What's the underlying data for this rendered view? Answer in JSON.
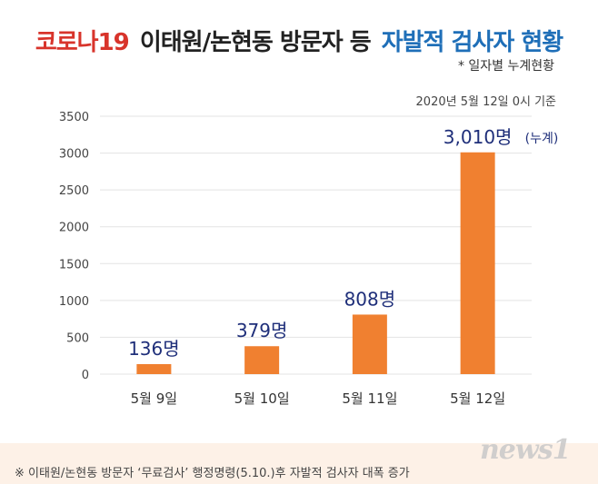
{
  "header": {
    "title_red": "코로나19",
    "title_black": "이태원/논현동 방문자 등",
    "title_blue": "자발적 검사자 현황",
    "subtitle": "* 일자별 누계현황",
    "date_note": "2020년 5월 12일 0시 기준"
  },
  "colors": {
    "title_red": "#d8342b",
    "title_blue": "#1f6fb8",
    "bar": "#f08030",
    "value_label": "#1f2f7a",
    "grid": "#e3e3e3",
    "footer_band": "#fdf1e7"
  },
  "chart_data": {
    "type": "bar",
    "categories": [
      "5월 9일",
      "5월 10일",
      "5월 11일",
      "5월 12일"
    ],
    "values": [
      136,
      379,
      808,
      3010
    ],
    "value_labels": [
      "136명",
      "379명",
      "808명",
      "3,010명"
    ],
    "extra_annotation": "(누계)",
    "ylim": [
      0,
      3500
    ],
    "yticks": [
      "0",
      "500",
      "1000",
      "1500",
      "2000",
      "2500",
      "3000",
      "3500"
    ],
    "grid": true,
    "legend": "none"
  },
  "footer": {
    "note": "※ 이태원/논현동 방문자 ‘무료검사’ 행정명령(5.10.)후 자발적 검사자 대폭 증가",
    "watermark": "news1"
  }
}
